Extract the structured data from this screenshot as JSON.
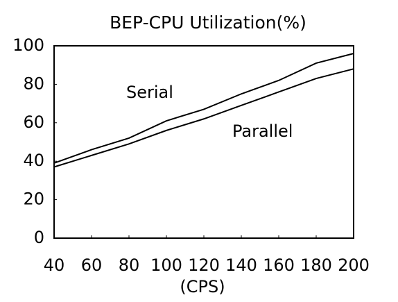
{
  "chart_data": {
    "type": "line",
    "title": "BEP-CPU Utilization(%)",
    "x_label": "(CPS)",
    "x": [
      40,
      60,
      80,
      100,
      120,
      140,
      160,
      180,
      200
    ],
    "xlim": [
      40,
      200
    ],
    "xticks": [
      40,
      60,
      80,
      100,
      120,
      140,
      160,
      180,
      200
    ],
    "ylim": [
      0,
      100
    ],
    "yticks": [
      0,
      20,
      40,
      60,
      80,
      100
    ],
    "grid": false,
    "series": [
      {
        "name": "Serial",
        "color": "#000000",
        "values": [
          39,
          46,
          52,
          61,
          67,
          75,
          82,
          91,
          96
        ]
      },
      {
        "name": "Parallel",
        "color": "#000000",
        "values": [
          37,
          43,
          49,
          56,
          62,
          69,
          76,
          83,
          88
        ]
      }
    ]
  }
}
